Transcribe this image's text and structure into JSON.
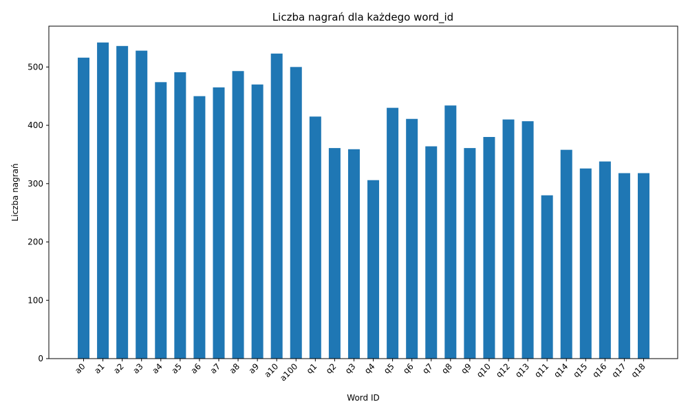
{
  "chart_data": {
    "type": "bar",
    "title": "Liczba nagrań dla każdego word_id",
    "xlabel": "Word ID",
    "ylabel": "Liczba nagrań",
    "ylim": [
      0,
      570
    ],
    "yticks": [
      0,
      100,
      200,
      300,
      400,
      500
    ],
    "grid": false,
    "bar_color": "#1f77b4",
    "categories": [
      "a0",
      "a1",
      "a2",
      "a3",
      "a4",
      "a5",
      "a6",
      "a7",
      "a8",
      "a9",
      "a10",
      "a100",
      "q1",
      "q2",
      "q3",
      "q4",
      "q5",
      "q6",
      "q7",
      "q8",
      "q9",
      "q10",
      "q12",
      "q13",
      "q11",
      "q14",
      "q15",
      "q16",
      "q17",
      "q18"
    ],
    "values": [
      516,
      542,
      536,
      528,
      474,
      491,
      450,
      465,
      493,
      470,
      523,
      500,
      415,
      361,
      359,
      306,
      430,
      411,
      364,
      434,
      361,
      380,
      410,
      407,
      280,
      358,
      326,
      338,
      318,
      318
    ]
  }
}
